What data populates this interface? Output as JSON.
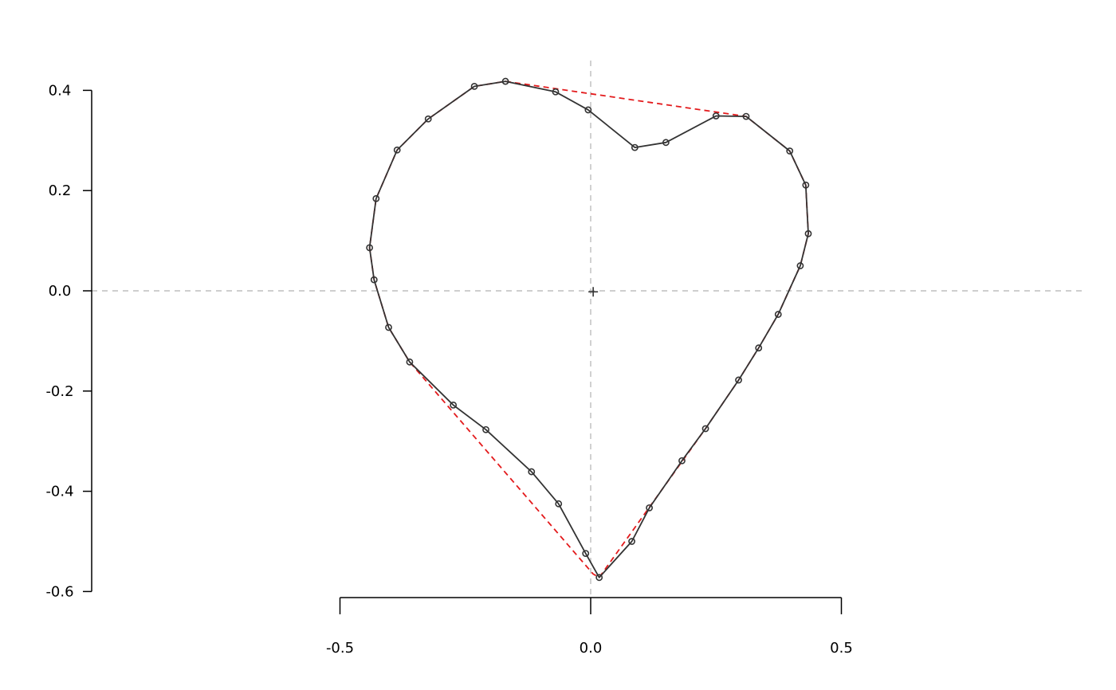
{
  "chart_data": {
    "type": "line",
    "title": "",
    "xlabel": "",
    "ylabel": "",
    "xlim": [
      -0.5,
      0.5
    ],
    "ylim": [
      -0.6,
      0.4
    ],
    "x_ticks": [
      -0.5,
      0.0,
      0.5
    ],
    "x_tick_labels": [
      "-0.5",
      "0.0",
      "0.5"
    ],
    "y_ticks": [
      -0.6,
      -0.4,
      -0.2,
      0.0,
      0.2,
      0.4
    ],
    "y_tick_labels": [
      "-0.6",
      "-0.4",
      "-0.2",
      "0.0",
      "0.2",
      "0.4"
    ],
    "grid": false,
    "reference_lines": {
      "x": 0.0,
      "y": 0.0,
      "style": "dashed",
      "color": "#bdbdbd"
    },
    "centroid": {
      "x": 0.005,
      "y": -0.002,
      "marker": "+"
    },
    "colors": {
      "outline": "#333333",
      "hull": "#e31a1c",
      "axes": "#000000"
    },
    "series": [
      {
        "type": "line-with-points",
        "closed": true,
        "x": [
          -0.17,
          -0.07,
          -0.005,
          0.088,
          0.15,
          0.25,
          0.31,
          0.397,
          0.429,
          0.434,
          0.418,
          0.374,
          0.335,
          0.295,
          0.229,
          0.182,
          0.117,
          0.082,
          0.017,
          -0.01,
          -0.064,
          -0.118,
          -0.209,
          -0.274,
          -0.361,
          -0.403,
          -0.432,
          -0.441,
          -0.428,
          -0.386,
          -0.324,
          -0.232
        ],
        "y": [
          0.418,
          0.397,
          0.361,
          0.286,
          0.296,
          0.349,
          0.348,
          0.279,
          0.211,
          0.114,
          0.05,
          -0.047,
          -0.114,
          -0.178,
          -0.275,
          -0.339,
          -0.433,
          -0.5,
          -0.572,
          -0.524,
          -0.425,
          -0.361,
          -0.277,
          -0.228,
          -0.142,
          -0.073,
          0.022,
          0.086,
          0.184,
          0.281,
          0.343,
          0.408
        ]
      },
      {
        "type": "line",
        "style": "dashed",
        "closed": true,
        "x": [
          -0.17,
          0.31,
          0.397,
          0.429,
          0.434,
          0.418,
          0.374,
          0.335,
          0.295,
          0.229,
          0.017,
          0.005,
          -0.361,
          -0.403,
          -0.432,
          -0.441,
          -0.428,
          -0.386,
          -0.324,
          -0.232
        ],
        "y": [
          0.418,
          0.348,
          0.279,
          0.211,
          0.114,
          0.05,
          -0.047,
          -0.114,
          -0.178,
          -0.275,
          -0.572,
          -0.565,
          -0.142,
          -0.073,
          0.022,
          0.086,
          0.184,
          0.281,
          0.343,
          0.408
        ]
      }
    ]
  }
}
